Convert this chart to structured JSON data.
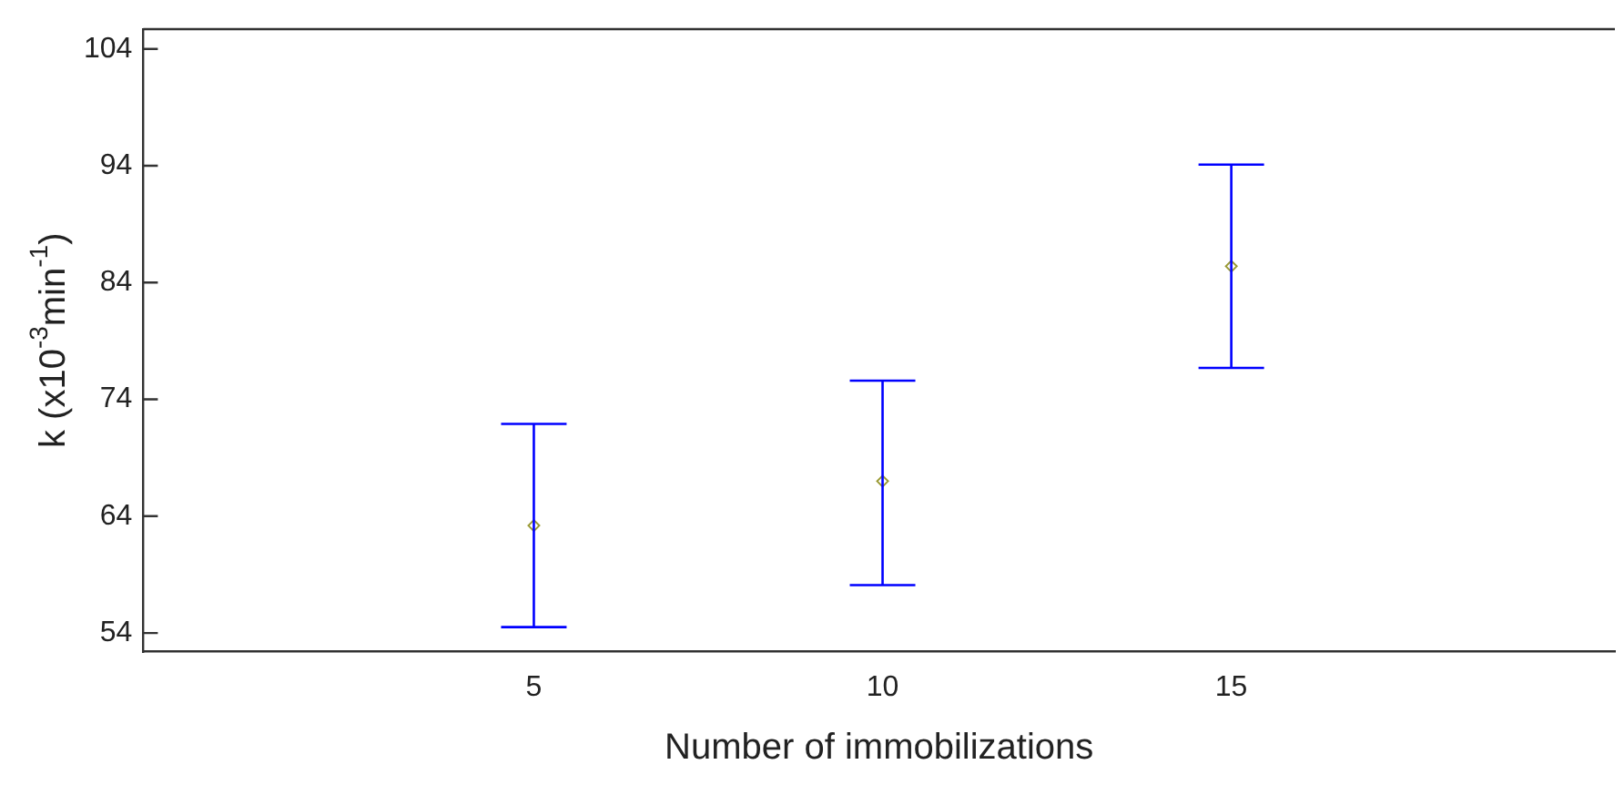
{
  "chart_data": {
    "type": "scatter",
    "xlabel": "Number of immobilizations",
    "ylabel": "k (x10$^{-3}$min$^{-1}$)",
    "x": [
      5,
      10,
      15
    ],
    "series": [
      {
        "color": "#999933",
        "values": [
          63.2,
          67.0,
          85.4
        ],
        "errors": [
          [
            54.5,
            71.9
          ],
          [
            58.1,
            75.6
          ],
          [
            76.7,
            94.1
          ]
        ]
      }
    ],
    "marker": "diamond",
    "xlim": [
      -0.6,
      20.5
    ],
    "xticks": [
      5,
      10,
      15
    ],
    "ylim": [
      52.4,
      105.7
    ],
    "yticks": [
      54,
      64,
      74,
      84,
      94,
      104
    ],
    "grid": false,
    "legend": false
  }
}
